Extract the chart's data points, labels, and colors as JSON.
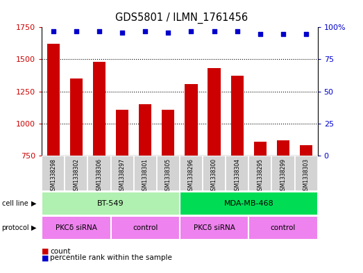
{
  "title": "GDS5801 / ILMN_1761456",
  "samples": [
    "GSM1338298",
    "GSM1338302",
    "GSM1338306",
    "GSM1338297",
    "GSM1338301",
    "GSM1338305",
    "GSM1338296",
    "GSM1338300",
    "GSM1338304",
    "GSM1338295",
    "GSM1338299",
    "GSM1338303"
  ],
  "counts": [
    1620,
    1350,
    1480,
    1110,
    1150,
    1110,
    1310,
    1430,
    1370,
    860,
    870,
    830
  ],
  "percentiles": [
    97,
    97,
    97,
    96,
    97,
    96,
    97,
    97,
    97,
    95,
    95,
    95
  ],
  "bar_color": "#cc0000",
  "dot_color": "#0000cc",
  "ylim_left": [
    750,
    1750
  ],
  "ylim_right": [
    0,
    100
  ],
  "yticks_left": [
    750,
    1000,
    1250,
    1500,
    1750
  ],
  "yticks_right": [
    0,
    25,
    50,
    75,
    100
  ],
  "ytick_labels_right": [
    "0",
    "25",
    "50",
    "75",
    "100%"
  ],
  "cell_lines": [
    {
      "label": "BT-549",
      "start": 0,
      "end": 6,
      "color": "#b0f0b0"
    },
    {
      "label": "MDA-MB-468",
      "start": 6,
      "end": 12,
      "color": "#00dd55"
    }
  ],
  "protocols": [
    {
      "label": "PKCδ siRNA",
      "start": 0,
      "end": 3,
      "color": "#ee82ee"
    },
    {
      "label": "control",
      "start": 3,
      "end": 6,
      "color": "#ee82ee"
    },
    {
      "label": "PKCδ siRNA",
      "start": 6,
      "end": 9,
      "color": "#ee82ee"
    },
    {
      "label": "control",
      "start": 9,
      "end": 12,
      "color": "#ee82ee"
    }
  ],
  "sample_box_color": "#d3d3d3",
  "tick_label_color_left": "#cc0000",
  "tick_label_color_right": "#0000cc",
  "grid_yticks": [
    1000,
    1250,
    1500
  ]
}
